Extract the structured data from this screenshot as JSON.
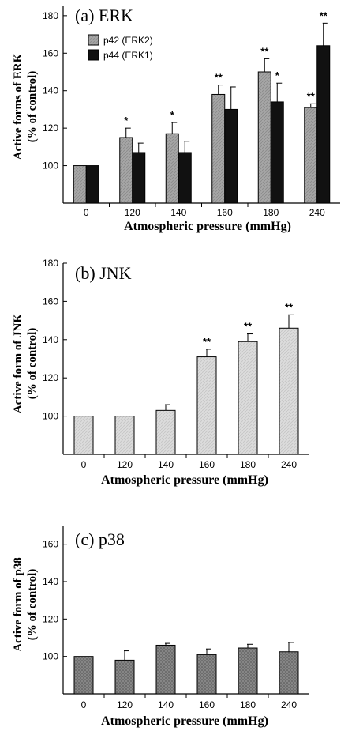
{
  "chart_data": [
    {
      "type": "bar",
      "title": "(a) ERK",
      "xlabel": "Atmospheric pressure (mmHg)",
      "ylabel_line1": "Active forms of ERK",
      "ylabel_line2": "(% of control)",
      "categories": [
        "0",
        "120",
        "140",
        "160",
        "180",
        "240"
      ],
      "ylim": [
        80,
        185
      ],
      "yticks": [
        "100",
        "120",
        "140",
        "160",
        "180"
      ],
      "legend_position": "top-left",
      "series": [
        {
          "name": "p42 (ERK2)",
          "color": "#a6a6a6",
          "values": [
            100,
            115,
            117,
            138,
            150,
            131
          ],
          "errors": [
            0,
            5,
            6,
            5,
            7,
            2
          ],
          "sig": [
            "",
            "*",
            "*",
            "**",
            "**",
            "**"
          ]
        },
        {
          "name": "p44 (ERK1)",
          "color": "#111111",
          "values": [
            100,
            107,
            107,
            130,
            134,
            164
          ],
          "errors": [
            0,
            5,
            6,
            12,
            10,
            12
          ],
          "sig": [
            "",
            "",
            "",
            "",
            "*",
            "**"
          ]
        }
      ]
    },
    {
      "type": "bar",
      "title": "(b) JNK",
      "xlabel": "Atmospheric pressure (mmHg)",
      "ylabel_line1": "Active form of JNK",
      "ylabel_line2": "(% of control)",
      "categories": [
        "0",
        "120",
        "140",
        "160",
        "180",
        "240"
      ],
      "ylim": [
        80,
        180
      ],
      "yticks": [
        "100",
        "120",
        "140",
        "160",
        "180"
      ],
      "series": [
        {
          "color": "#d9d9d9",
          "values": [
            100,
            100,
            103,
            131,
            139,
            146
          ],
          "errors": [
            0,
            0,
            3,
            4,
            4,
            7
          ],
          "sig": [
            "",
            "",
            "",
            "**",
            "**",
            "**"
          ]
        }
      ]
    },
    {
      "type": "bar",
      "title": "(c) p38",
      "xlabel": "Atmospheric pressure (mmHg)",
      "ylabel_line1": "Active form of p38",
      "ylabel_line2": "(% of control)",
      "categories": [
        "0",
        "120",
        "140",
        "160",
        "180",
        "240"
      ],
      "ylim": [
        80,
        170
      ],
      "yticks": [
        "100",
        "120",
        "140",
        "160"
      ],
      "series": [
        {
          "color": "#7f7f7f",
          "values": [
            100,
            98,
            106,
            101,
            104.5,
            102.5
          ],
          "errors": [
            0,
            5,
            1,
            3,
            2,
            5
          ],
          "sig": [
            "",
            "",
            "",
            "",
            "",
            ""
          ]
        }
      ]
    }
  ]
}
